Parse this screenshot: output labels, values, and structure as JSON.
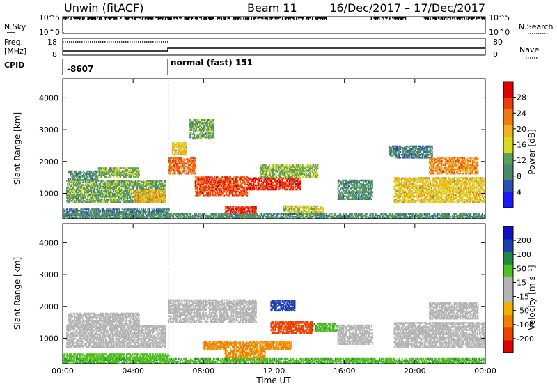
{
  "header": {
    "site": "Unwin (fitACF)",
    "beam": "Beam 11",
    "date_range": "16/Dec/2017 – 17/Dec/2017"
  },
  "sky_panel": {
    "left_label": "N.Sky",
    "right_label": "N.Search",
    "left_ticks": [
      "10^5",
      "10^0"
    ],
    "right_ticks": [
      "10^5",
      "10^0"
    ]
  },
  "freq_panel": {
    "left_label_1": "Freq.",
    "left_label_2": "[MHz]",
    "right_label": "Nave",
    "left_ticks": [
      "18",
      "8"
    ],
    "right_ticks": [
      "80",
      "0"
    ]
  },
  "cpid_panel": {
    "label": "CPID",
    "segments": [
      {
        "start_h": 0,
        "text": "-8607"
      },
      {
        "start_h": 6,
        "text": "normal (fast) 151"
      }
    ]
  },
  "colors": {
    "power_scale": [
      "#1a1aff",
      "#2e4fb4",
      "#4a8a6a",
      "#5aa05a",
      "#d8d820",
      "#f0b020",
      "#f07810",
      "#f03a10",
      "#e00000"
    ],
    "velocity_scale": [
      "#dd0000",
      "#f04000",
      "#f08000",
      "#f0b000",
      "#b4b4b4",
      "#b4b4b4",
      "#50c020",
      "#208a40",
      "#2040b0",
      "#1010c0"
    ]
  },
  "chart_data": [
    {
      "type": "heatmap",
      "name": "power",
      "xlabel": "",
      "ylabel": "Slant Range [km]",
      "xlim": [
        0,
        24
      ],
      "ylim": [
        200,
        4600
      ],
      "y_ticks": [
        1000,
        2000,
        3000,
        4000
      ],
      "colorbar": {
        "label": "Power [dB]",
        "ticks": [
          4,
          8,
          12,
          16,
          20,
          24,
          28
        ],
        "range": [
          0,
          32
        ]
      },
      "regions": [
        {
          "t0": 0.0,
          "t1": 6.0,
          "r0": 300,
          "r1": 500,
          "value": 8
        },
        {
          "t0": 0.2,
          "t1": 5.8,
          "r0": 700,
          "r1": 1400,
          "value": 12
        },
        {
          "t0": 0.3,
          "t1": 2.0,
          "r0": 1400,
          "r1": 1700,
          "value": 10
        },
        {
          "t0": 2.0,
          "t1": 4.3,
          "r0": 1500,
          "r1": 1800,
          "value": 13
        },
        {
          "t0": 4.0,
          "t1": 5.8,
          "r0": 700,
          "r1": 1100,
          "value": 20
        },
        {
          "t0": 6.0,
          "t1": 7.5,
          "r0": 1600,
          "r1": 2100,
          "value": 24
        },
        {
          "t0": 6.2,
          "t1": 7.0,
          "r0": 2200,
          "r1": 2600,
          "value": 18
        },
        {
          "t0": 7.2,
          "t1": 8.6,
          "r0": 2700,
          "r1": 3300,
          "value": 12
        },
        {
          "t0": 7.5,
          "t1": 10.5,
          "r0": 900,
          "r1": 1500,
          "value": 26
        },
        {
          "t0": 9.2,
          "t1": 11.0,
          "r0": 300,
          "r1": 600,
          "value": 28
        },
        {
          "t0": 10.5,
          "t1": 13.5,
          "r0": 1100,
          "r1": 1500,
          "value": 28
        },
        {
          "t0": 11.2,
          "t1": 14.5,
          "r0": 1500,
          "r1": 1900,
          "value": 14
        },
        {
          "t0": 12.5,
          "t1": 14.8,
          "r0": 350,
          "r1": 600,
          "value": 16
        },
        {
          "t0": 15.6,
          "t1": 17.6,
          "r0": 800,
          "r1": 1400,
          "value": 10
        },
        {
          "t0": 18.5,
          "t1": 21.0,
          "r0": 2100,
          "r1": 2500,
          "value": 8
        },
        {
          "t0": 18.8,
          "t1": 24.0,
          "r0": 700,
          "r1": 1500,
          "value": 18
        },
        {
          "t0": 20.8,
          "t1": 23.6,
          "r0": 1600,
          "r1": 2100,
          "value": 22
        },
        {
          "t0": 0.0,
          "t1": 24.0,
          "r0": 200,
          "r1": 380,
          "value": 10
        }
      ]
    },
    {
      "type": "heatmap",
      "name": "velocity",
      "xlabel": "Time UT",
      "ylabel": "Slant Range [km]",
      "xlim": [
        0,
        24
      ],
      "ylim": [
        200,
        4600
      ],
      "x_ticks": [
        "00:00",
        "04:00",
        "08:00",
        "12:00",
        "16:00",
        "20:00",
        "00:00"
      ],
      "y_ticks": [
        1000,
        2000,
        3000,
        4000
      ],
      "colorbar": {
        "label": "Velocity [m s⁻¹]",
        "ticks": [
          -200,
          -100,
          -50,
          -15,
          15,
          50,
          100,
          200
        ]
      },
      "regions": [
        {
          "t0": 0.0,
          "t1": 6.0,
          "r0": 300,
          "r1": 500,
          "value": 30
        },
        {
          "t0": 0.2,
          "t1": 5.8,
          "r0": 700,
          "r1": 1400,
          "value": 0
        },
        {
          "t0": 0.3,
          "t1": 4.3,
          "r0": 1400,
          "r1": 1800,
          "value": 0
        },
        {
          "t0": 6.0,
          "t1": 11.0,
          "r0": 1500,
          "r1": 2200,
          "value": 0
        },
        {
          "t0": 9.2,
          "t1": 11.5,
          "r0": 300,
          "r1": 600,
          "value": -60
        },
        {
          "t0": 8.0,
          "t1": 13.0,
          "r0": 650,
          "r1": 900,
          "value": -60
        },
        {
          "t0": 11.8,
          "t1": 14.2,
          "r0": 1150,
          "r1": 1550,
          "value": -120
        },
        {
          "t0": 14.2,
          "t1": 15.6,
          "r0": 1200,
          "r1": 1450,
          "value": 40
        },
        {
          "t0": 11.8,
          "t1": 13.2,
          "r0": 1850,
          "r1": 2200,
          "value": 150
        },
        {
          "t0": 15.6,
          "t1": 17.6,
          "r0": 800,
          "r1": 1400,
          "value": 0
        },
        {
          "t0": 18.8,
          "t1": 24.0,
          "r0": 700,
          "r1": 1500,
          "value": 0
        },
        {
          "t0": 20.8,
          "t1": 23.6,
          "r0": 1600,
          "r1": 2100,
          "value": 0
        },
        {
          "t0": 0.0,
          "t1": 24.0,
          "r0": 200,
          "r1": 380,
          "value": 40
        }
      ]
    }
  ]
}
